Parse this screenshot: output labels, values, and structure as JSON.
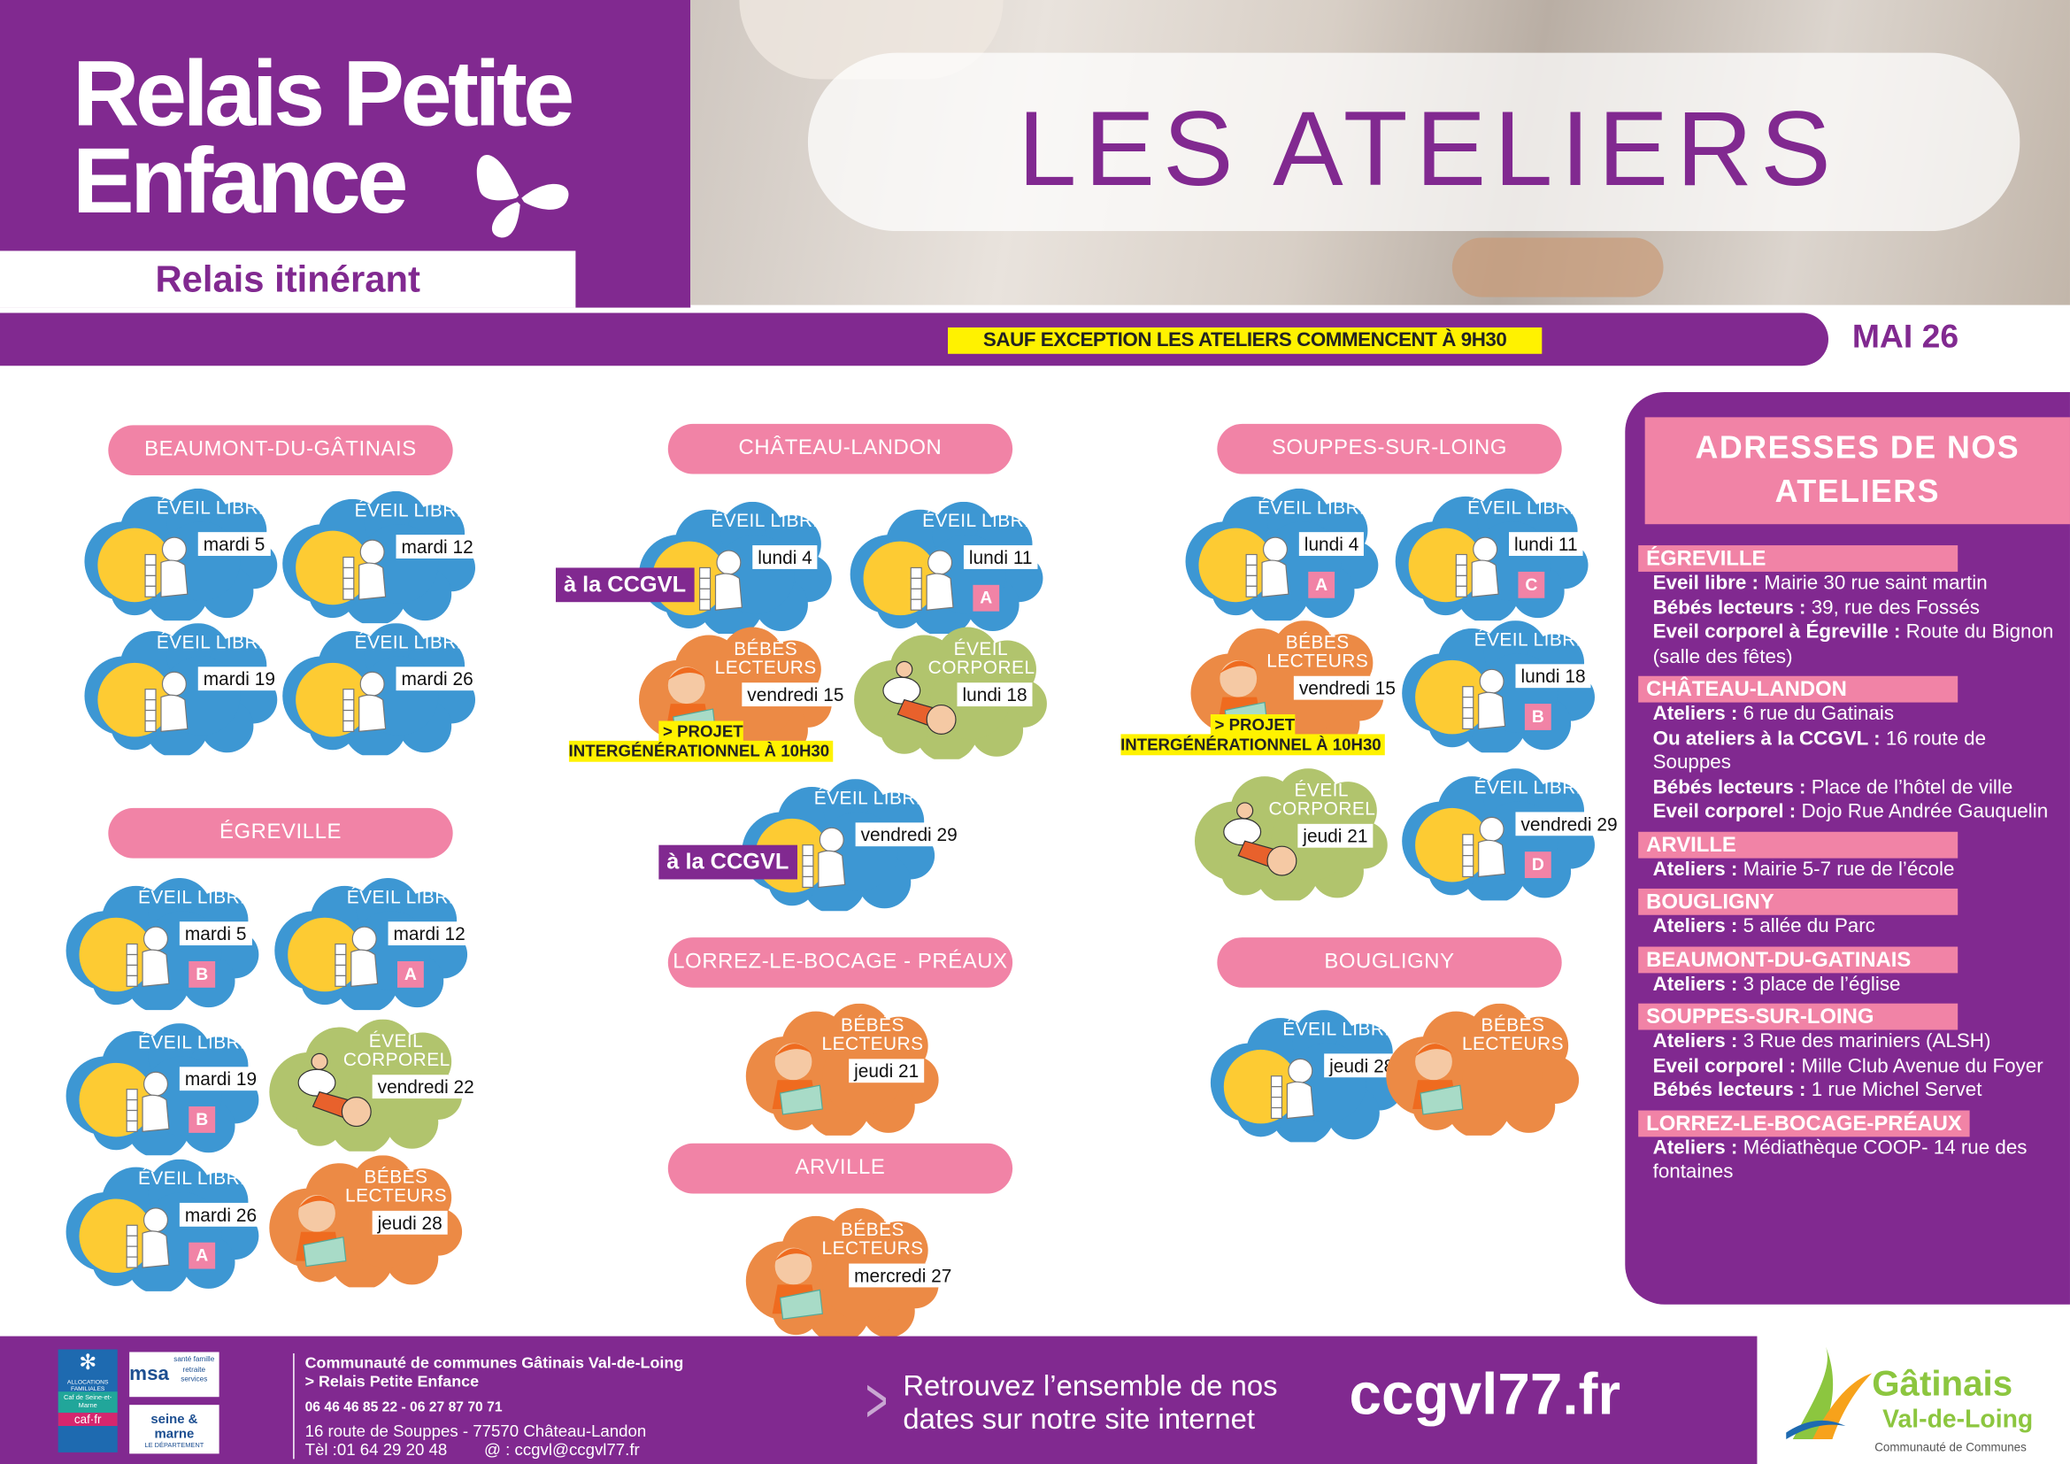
{
  "header": {
    "brand_line1": "Relais Petite",
    "brand_line2": "Enfance",
    "subtitle": "Relais itinérant",
    "title": "LES ATELIERS",
    "notice": "SAUF EXCEPTION LES ATELIERS COMMENCENT À 9H30",
    "month": "MAI 26"
  },
  "colors": {
    "purple": "#812990",
    "pink": "#f183a6",
    "blue": "#3d97d3",
    "yellow": "#fdcb33",
    "orange": "#ec8a45",
    "green": "#b1c46d",
    "highlight": "#fff200"
  },
  "schedule": [
    {
      "name": "BEAUMONT-DU-GÂTINAIS",
      "events": [
        {
          "type": "eveil",
          "title": "ÉVEIL LIBRE",
          "date": "mardi 5"
        },
        {
          "type": "eveil",
          "title": "ÉVEIL LIBRE",
          "date": "mardi 12"
        },
        {
          "type": "eveil",
          "title": "ÉVEIL LIBRE",
          "date": "mardi 19"
        },
        {
          "type": "eveil",
          "title": "ÉVEIL LIBRE",
          "date": "mardi 26"
        }
      ]
    },
    {
      "name": "ÉGREVILLE",
      "events": [
        {
          "type": "eveil",
          "title": "ÉVEIL LIBRE",
          "date": "mardi 5",
          "letter": "B"
        },
        {
          "type": "eveil",
          "title": "ÉVEIL LIBRE",
          "date": "mardi 12",
          "letter": "A"
        },
        {
          "type": "eveil",
          "title": "ÉVEIL LIBRE",
          "date": "mardi 19",
          "letter": "B"
        },
        {
          "type": "corporel",
          "title": "ÉVEIL CORPOREL",
          "date": "vendredi 22"
        },
        {
          "type": "eveil",
          "title": "ÉVEIL LIBRE",
          "date": "mardi 26",
          "letter": "A"
        },
        {
          "type": "bebes",
          "title": "BÉBÉS LECTEURS",
          "date": "jeudi 28"
        }
      ]
    },
    {
      "name": "CHÂTEAU-LANDON",
      "events": [
        {
          "type": "eveil",
          "title": "ÉVEIL LIBRE",
          "date": "lundi 4",
          "tag": "à la CCGVL"
        },
        {
          "type": "eveil",
          "title": "ÉVEIL LIBRE",
          "date": "lundi 11",
          "letter": "A"
        },
        {
          "type": "bebes",
          "title": "BÉBÉS LECTEURS",
          "date": "vendredi 15",
          "note": "> PROJET INTERGÉNÉRATIONNEL À 10H30"
        },
        {
          "type": "corporel",
          "title": "ÉVEIL CORPOREL",
          "date": "lundi 18"
        },
        {
          "type": "eveil",
          "title": "ÉVEIL LIBRE",
          "date": "vendredi 29",
          "tag": "à la CCGVL"
        }
      ]
    },
    {
      "name": "LORREZ-LE-BOCAGE - PRÉAUX",
      "events": [
        {
          "type": "bebes",
          "title": "BÉBÉS LECTEURS",
          "date": "jeudi 21"
        }
      ]
    },
    {
      "name": "ARVILLE",
      "events": [
        {
          "type": "bebes",
          "title": "BÉBÉS LECTEURS",
          "date": "mercredi 27"
        }
      ]
    },
    {
      "name": "SOUPPES-SUR-LOING",
      "events": [
        {
          "type": "eveil",
          "title": "ÉVEIL LIBRE",
          "date": "lundi 4",
          "letter": "A"
        },
        {
          "type": "eveil",
          "title": "ÉVEIL LIBRE",
          "date": "lundi 11",
          "letter": "C"
        },
        {
          "type": "bebes",
          "title": "BÉBÉS LECTEURS",
          "date": "vendredi 15",
          "note": "> PROJET INTERGÉNÉRATIONNEL À 10H30"
        },
        {
          "type": "eveil",
          "title": "ÉVEIL LIBRE",
          "date": "lundi 18",
          "letter": "B"
        },
        {
          "type": "corporel",
          "title": "ÉVEIL CORPOREL",
          "date": "jeudi 21"
        },
        {
          "type": "eveil",
          "title": "ÉVEIL LIBRE",
          "date": "vendredi 29",
          "letter": "D"
        }
      ]
    },
    {
      "name": "BOUGLIGNY",
      "events": [
        {
          "type": "eveil",
          "title": "ÉVEIL LIBRE",
          "date": "jeudi 28"
        },
        {
          "type": "bebes",
          "title": "BÉBÉS LECTEURS"
        }
      ]
    }
  ],
  "addresses": {
    "title": "ADRESSES DE NOS ATELIERS",
    "sections": [
      {
        "name": "ÉGREVILLE",
        "lines": [
          {
            "label": "Eveil libre :",
            "text": " Mairie 30 rue saint martin"
          },
          {
            "label": "Bébés lecteurs :",
            "text": " 39, rue des Fossés"
          },
          {
            "label": "Eveil corporel à Égreville :",
            "text": " Route du Bignon (salle des fêtes)"
          }
        ]
      },
      {
        "name": "CHÂTEAU-LANDON",
        "lines": [
          {
            "label": "Ateliers :",
            "text": " 6 rue du Gatinais"
          },
          {
            "label": "Ou ateliers à la CCGVL :",
            "text": " 16 route de Souppes"
          },
          {
            "label": "Bébés lecteurs :",
            "text": " Place de l’hôtel de ville"
          },
          {
            "label": "Eveil corporel :",
            "text": " Dojo Rue Andrée Gauquelin"
          }
        ]
      },
      {
        "name": "ARVILLE",
        "lines": [
          {
            "label": "Ateliers :",
            "text": " Mairie 5-7 rue de l’école"
          }
        ]
      },
      {
        "name": "BOUGLIGNY",
        "lines": [
          {
            "label": "Ateliers :",
            "text": " 5 allée du Parc"
          }
        ]
      },
      {
        "name": "BEAUMONT-DU-GATINAIS",
        "lines": [
          {
            "label": "Ateliers :",
            "text": " 3 place de l’église"
          }
        ]
      },
      {
        "name": "SOUPPES-SUR-LOING",
        "lines": [
          {
            "label": "Ateliers :",
            "text": " 3 Rue des mariniers (ALSH)"
          },
          {
            "label": "Eveil corporel :",
            "text": " Mille Club Avenue du Foyer"
          },
          {
            "label": "Bébés lecteurs :",
            "text": " 1 rue Michel Servet"
          }
        ]
      },
      {
        "name": "LORREZ-LE-BOCAGE-PRÉAUX",
        "lines": [
          {
            "label": "Ateliers :",
            "text": " Médiathèque COOP- 14 rue des fontaines"
          }
        ]
      }
    ]
  },
  "footer": {
    "org": "Communauté de communes Gâtinais Val-de-Loing",
    "service": "> Relais Petite Enfance",
    "phones": "06 46 46 85 22 - 06 27 87 70 71",
    "address": "16 route de Souppes - 77570 Château-Landon",
    "tel": "Tèl :01 64 29 20 48",
    "email": "@ : ccgvl@ccgvl77.fr",
    "cta_line1": "Retrouvez l’ensemble de nos",
    "cta_line2": "dates sur notre site internet",
    "website": "ccgvl77.fr",
    "logos": {
      "caf": "ALLOCATIONS FAMILIALES",
      "caf_sub": "Caf de Seine-et-Marne",
      "caf_web": "caf·fr",
      "msa": "msa",
      "msa_sub": "santé famille retraite services",
      "seine": "seine & marne",
      "seine_sub": "LE DÉPARTEMENT",
      "gatinais1": "Gâtinais",
      "gatinais2": "Val-de-Loing",
      "gatinais_sub": "Communauté de Communes"
    }
  }
}
